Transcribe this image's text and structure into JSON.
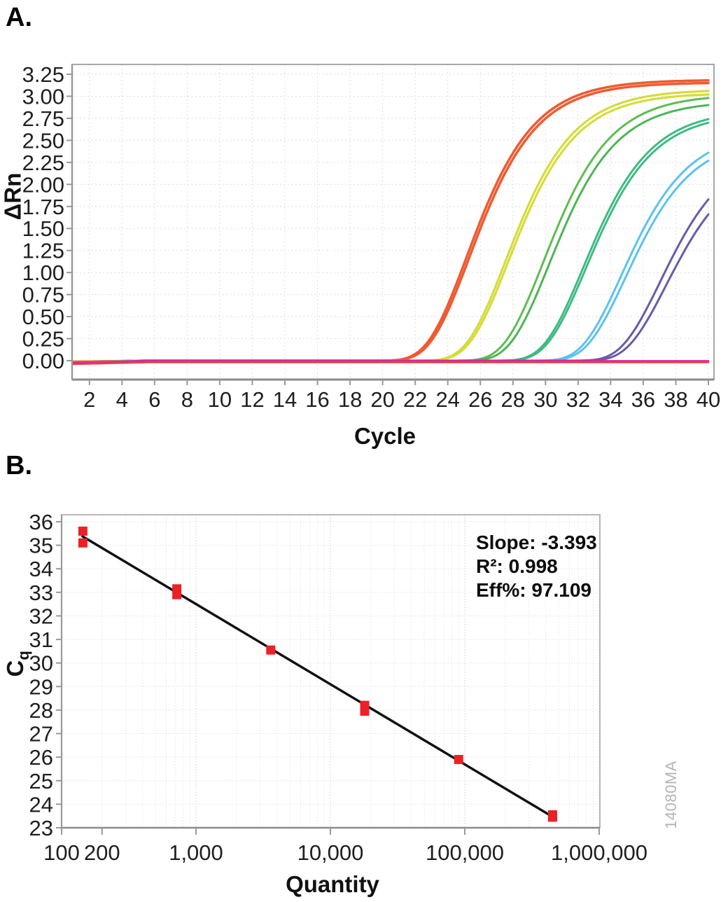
{
  "panel_a": {
    "label": "A.",
    "xlabel": "Cycle",
    "ylabel": "ΔRn"
  },
  "panel_b": {
    "label": "B.",
    "xlabel": "Quantity",
    "ylabel_main": "C",
    "ylabel_sub": "q",
    "annotation": {
      "slope": "Slope: -3.393",
      "r2": "R²: 0.998",
      "eff": "Eff%: 97.109"
    }
  },
  "watermark": "14080MA",
  "colors": {
    "marker_red": "#EC2127",
    "trend_black": "#111111",
    "grid_light": "#dcdcdc",
    "axis_gray": "#a8a8a8"
  },
  "chart_data": [
    {
      "type": "line",
      "title": "qPCR amplification plot",
      "xlabel": "Cycle",
      "ylabel": "ΔRn",
      "xlim": [
        1,
        40
      ],
      "ylim": [
        -0.21,
        3.36
      ],
      "grid": true,
      "x_ticks": [
        2,
        4,
        6,
        8,
        10,
        12,
        14,
        16,
        18,
        20,
        22,
        24,
        26,
        28,
        30,
        32,
        34,
        36,
        38,
        40
      ],
      "y_ticks": [
        0.0,
        0.25,
        0.5,
        0.75,
        1.0,
        1.25,
        1.5,
        1.75,
        2.0,
        2.25,
        2.5,
        2.75,
        3.0,
        3.25
      ],
      "curve_model": "delta_rn = end_value * gompertz(0.42*(cycle-midpoint)) normalized at cycle 40, plus baseline dip before cycle 5",
      "series": [
        {
          "name": "curve-orange-a",
          "color": "#EF5A30",
          "width": 3.5,
          "end_value": 3.18,
          "midpoint": 25.15,
          "takeoff_cycle": 21.5,
          "dip": -0.012
        },
        {
          "name": "curve-orange-b",
          "color": "#EF5A30",
          "width": 3.5,
          "end_value": 3.15,
          "midpoint": 25.3,
          "takeoff_cycle": 21.6,
          "dip": -0.02
        },
        {
          "name": "curve-yellow-a",
          "color": "#D5DC3C",
          "width": 3.2,
          "end_value": 3.06,
          "midpoint": 27.55,
          "takeoff_cycle": 24.0,
          "dip": -0.02
        },
        {
          "name": "curve-yellow-b",
          "color": "#D5DC3C",
          "width": 3.2,
          "end_value": 3.02,
          "midpoint": 27.7,
          "takeoff_cycle": 24.1,
          "dip": -0.026
        },
        {
          "name": "curve-green-a",
          "color": "#5CBD4F",
          "width": 3,
          "end_value": 2.98,
          "midpoint": 29.85,
          "takeoff_cycle": 26.3,
          "dip": -0.03
        },
        {
          "name": "curve-green-b",
          "color": "#4DB556",
          "width": 3,
          "end_value": 2.9,
          "midpoint": 30.2,
          "takeoff_cycle": 26.7,
          "dip": -0.022
        },
        {
          "name": "curve-teal-a",
          "color": "#3FBA83",
          "width": 3,
          "end_value": 2.74,
          "midpoint": 32.3,
          "takeoff_cycle": 28.8,
          "dip": -0.026
        },
        {
          "name": "curve-teal-b",
          "color": "#3FBA83",
          "width": 3,
          "end_value": 2.7,
          "midpoint": 32.45,
          "takeoff_cycle": 28.9,
          "dip": -0.032
        },
        {
          "name": "curve-blue-a",
          "color": "#5BC2EE",
          "width": 3,
          "end_value": 2.36,
          "midpoint": 34.65,
          "takeoff_cycle": 31.2,
          "dip": -0.022
        },
        {
          "name": "curve-blue-b",
          "color": "#5BC2EE",
          "width": 3,
          "end_value": 2.27,
          "midpoint": 34.9,
          "takeoff_cycle": 31.4,
          "dip": -0.028
        },
        {
          "name": "curve-purple-a",
          "color": "#6A5AA8",
          "width": 3,
          "end_value": 1.83,
          "midpoint": 37.05,
          "takeoff_cycle": 33.6,
          "dip": -0.032
        },
        {
          "name": "curve-purple-b",
          "color": "#6A5AA8",
          "width": 3,
          "end_value": 1.66,
          "midpoint": 37.4,
          "takeoff_cycle": 34.0,
          "dip": -0.038
        },
        {
          "name": "flat-magenta",
          "color": "#E9238C",
          "width": 3,
          "flat": -0.005,
          "dip": -0.018
        },
        {
          "name": "flat-crimson",
          "color": "#D8474E",
          "width": 2.5,
          "flat": -0.02,
          "dip": -0.02
        }
      ]
    },
    {
      "type": "scatter",
      "title": "Standard curve",
      "xlabel": "Quantity",
      "ylabel": "Cq",
      "xscale": "log",
      "xlim": [
        100,
        1100000
      ],
      "ylim": [
        23,
        36.3
      ],
      "grid": true,
      "x_tick_labels": [
        "100",
        "200",
        "1,000",
        "10,000",
        "100,000",
        "1,000,000"
      ],
      "x_tick_values": [
        100,
        200,
        1000,
        10000,
        100000,
        1000000
      ],
      "y_ticks": [
        36,
        35,
        34,
        33,
        32,
        31,
        30,
        29,
        28,
        27,
        26,
        25,
        24,
        23
      ],
      "marker": {
        "shape": "square",
        "color": "#EC2127",
        "size": 13
      },
      "points": [
        {
          "quantity": 144,
          "cq": 35.6
        },
        {
          "quantity": 144,
          "cq": 35.1
        },
        {
          "quantity": 720,
          "cq": 33.15
        },
        {
          "quantity": 720,
          "cq": 32.9
        },
        {
          "quantity": 3600,
          "cq": 30.55
        },
        {
          "quantity": 18000,
          "cq": 28.2
        },
        {
          "quantity": 18000,
          "cq": 27.95
        },
        {
          "quantity": 90000,
          "cq": 25.9
        },
        {
          "quantity": 450000,
          "cq": 23.55
        },
        {
          "quantity": 450000,
          "cq": 23.45
        }
      ],
      "trendline": {
        "slope": -3.393,
        "r2": 0.998,
        "efficiency_pct": 97.109,
        "from": {
          "quantity": 143,
          "cq": 35.38
        },
        "to": {
          "quantity": 455000,
          "cq": 23.45
        }
      }
    }
  ]
}
